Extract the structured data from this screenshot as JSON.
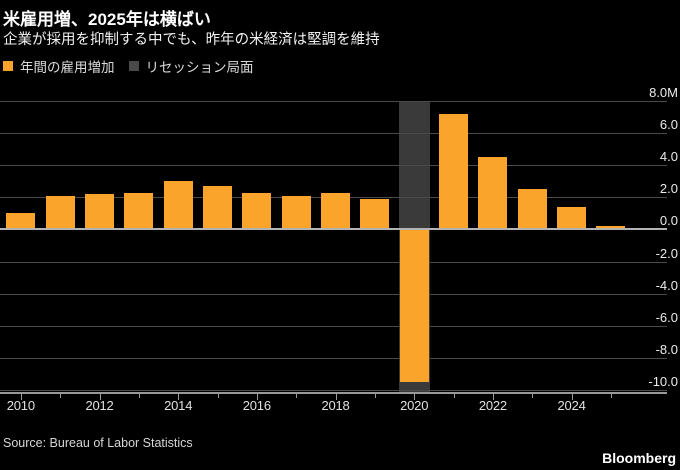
{
  "header": {
    "title": "米雇用増、2025年は横ばい",
    "subtitle": "企業が採用を抑制する中でも、昨年の米経済は堅調を維持"
  },
  "legend": {
    "items": [
      {
        "label": "年間の雇用増加",
        "color": "#FBA42C"
      },
      {
        "label": "リセッション局面",
        "color": "#3A3A3A"
      }
    ]
  },
  "footer": {
    "source": "Source: Bureau of Labor Statistics",
    "brand": "Bloomberg"
  },
  "chart_data": {
    "type": "bar",
    "title": "米雇用増、2025年は横ばい",
    "subtitle": "企業が採用を抑制する中でも、昨年の米経済は堅調を維持",
    "unit": "millions of jobs (M)",
    "categories": [
      2010,
      2011,
      2012,
      2013,
      2014,
      2015,
      2016,
      2017,
      2018,
      2019,
      2020,
      2021,
      2022,
      2023,
      2024,
      2025
    ],
    "values": [
      1.0,
      2.1,
      2.2,
      2.3,
      3.0,
      2.7,
      2.3,
      2.1,
      2.3,
      1.9,
      -9.5,
      7.2,
      4.5,
      2.5,
      1.4,
      0.1
    ],
    "series_label": "年間の雇用増加",
    "recession_label": "リセッション局面",
    "recession_years": [
      2020
    ],
    "ylim": [
      -10.3,
      8.0
    ],
    "yticks": [
      8,
      6,
      4,
      2,
      0,
      -2,
      -4,
      -6,
      -8,
      -10
    ],
    "ytick_labels": [
      "8.0M",
      "6.0",
      "4.0",
      "2.0",
      "0.0",
      "-2.0",
      "-4.0",
      "-6.0",
      "-8.0",
      "-10.0"
    ],
    "xticks": [
      2010,
      2012,
      2014,
      2016,
      2018,
      2020,
      2022,
      2024
    ],
    "xtick_labels": [
      "2010",
      "2012",
      "2014",
      "2016",
      "2018",
      "2020",
      "2022",
      "2024"
    ],
    "grid": true,
    "legend_position": "top-left",
    "colors": {
      "bar": "#FBA42C",
      "recession_band": "#3A3A3A",
      "gridline": "#4A4A4A",
      "zero_line": "#B3B3B3",
      "axis_line": "#999999",
      "background": "#000000"
    },
    "source": "Bureau of Labor Statistics"
  }
}
